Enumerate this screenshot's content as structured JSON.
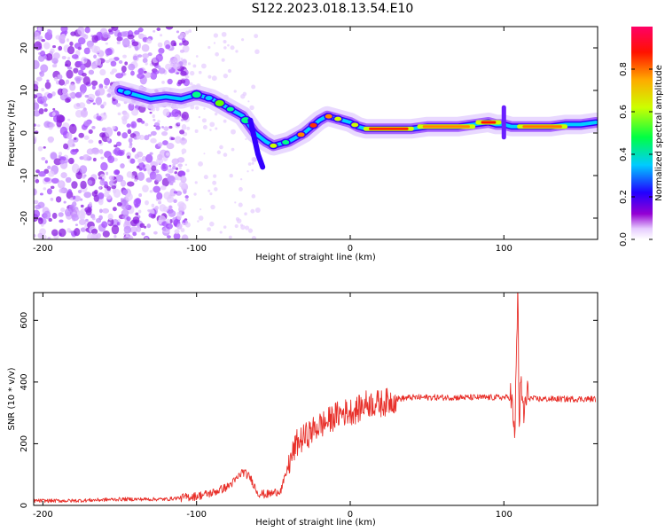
{
  "title": "S122.2023.018.13.54.E10",
  "colorbar": {
    "label": "Normalized spectral amplitude",
    "ticks": [
      "0.0",
      "0.2",
      "0.4",
      "0.6",
      "0.8"
    ],
    "tick_values": [
      0.0,
      0.2,
      0.4,
      0.6,
      0.8
    ],
    "range": [
      0.0,
      1.0
    ],
    "colormap": [
      "#ffffff",
      "#d9b3ff",
      "#9400d3",
      "#3300ff",
      "#00ccff",
      "#00ff66",
      "#ccff00",
      "#ff9900",
      "#ff0000",
      "#ff0066"
    ]
  },
  "chart_data": [
    {
      "type": "heatmap",
      "xlabel": "Height of straight line (km)",
      "ylabel": "Frequency (Hz)",
      "xlim": [
        -206,
        161
      ],
      "ylim": [
        -25,
        25
      ],
      "x_ticks": [
        -200,
        -100,
        0,
        100
      ],
      "y_ticks": [
        -20,
        -10,
        0,
        10,
        20
      ],
      "ridge": {
        "x": [
          -150,
          -140,
          -130,
          -120,
          -110,
          -100,
          -90,
          -80,
          -70,
          -62,
          -55,
          -50,
          -45,
          -40,
          -35,
          -30,
          -25,
          -20,
          -15,
          -10,
          -5,
          0,
          5,
          10,
          20,
          30,
          40,
          50,
          60,
          70,
          80,
          90,
          95,
          100,
          105,
          110,
          120,
          130,
          140,
          150,
          160
        ],
        "y": [
          10,
          9,
          8,
          8.5,
          8,
          9,
          8,
          6,
          4,
          0,
          -2,
          -3,
          -2.5,
          -2,
          -1,
          0,
          1.5,
          3,
          4,
          3.5,
          3,
          2.5,
          1.5,
          1,
          1,
          1,
          1,
          1.5,
          1.5,
          1.5,
          2,
          2.5,
          2,
          2,
          1.5,
          1.5,
          1.5,
          1.5,
          2,
          2,
          2.5
        ]
      },
      "grid": false
    },
    {
      "type": "line",
      "xlabel": "Height of straight line (km)",
      "ylabel": "SNR (10 * v/v)",
      "xlim": [
        -206,
        161
      ],
      "ylim": [
        0,
        690
      ],
      "x_ticks": [
        -200,
        -100,
        0,
        100
      ],
      "y_ticks": [
        0,
        200,
        400,
        600
      ],
      "series": [
        {
          "color": "#e8302a",
          "x": [
            -206,
            -180,
            -150,
            -120,
            -100,
            -90,
            -80,
            -75,
            -70,
            -65,
            -60,
            -55,
            -50,
            -45,
            -40,
            -35,
            -30,
            -25,
            -20,
            -15,
            -10,
            -5,
            0,
            5,
            10,
            15,
            20,
            30,
            40,
            50,
            60,
            70,
            80,
            90,
            100,
            105,
            107,
            109,
            110,
            111,
            113,
            115,
            120,
            130,
            140,
            150,
            160
          ],
          "values": [
            15,
            15,
            20,
            20,
            30,
            40,
            60,
            80,
            110,
            90,
            40,
            35,
            40,
            50,
            130,
            200,
            220,
            240,
            260,
            270,
            290,
            300,
            305,
            310,
            330,
            330,
            330,
            345,
            350,
            350,
            350,
            350,
            350,
            350,
            350,
            350,
            200,
            700,
            280,
            380,
            300,
            350,
            345,
            345,
            345,
            345,
            345
          ]
        }
      ],
      "grid": false
    }
  ]
}
